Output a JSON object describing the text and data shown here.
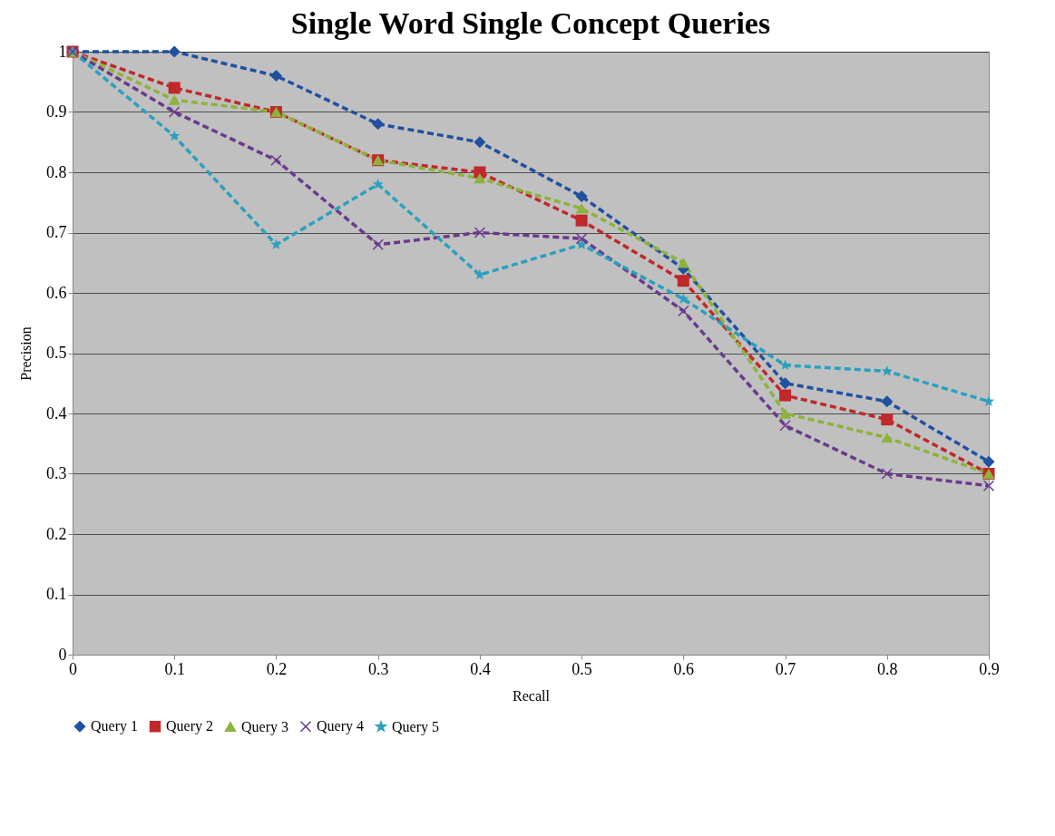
{
  "chart_data": {
    "type": "line",
    "title": "Single Word Single Concept Queries",
    "xlabel": "Recall",
    "ylabel": "Precision",
    "categories": [
      "0",
      "0.1",
      "0.2",
      "0.3",
      "0.4",
      "0.5",
      "0.6",
      "0.7",
      "0.8",
      "0.9"
    ],
    "series": [
      {
        "name": "Query 1",
        "color": "#2050a0",
        "marker": "diamond",
        "values": [
          1,
          1.0,
          0.96,
          0.88,
          0.85,
          0.76,
          0.64,
          0.45,
          0.42,
          0.32
        ]
      },
      {
        "name": "Query 2",
        "color": "#c0282a",
        "marker": "square",
        "values": [
          1,
          0.94,
          0.9,
          0.82,
          0.8,
          0.72,
          0.62,
          0.43,
          0.39,
          0.3
        ]
      },
      {
        "name": "Query 3",
        "color": "#8db33a",
        "marker": "triangle",
        "values": [
          1,
          0.92,
          0.9,
          0.82,
          0.79,
          0.74,
          0.65,
          0.4,
          0.36,
          0.3
        ]
      },
      {
        "name": "Query 4",
        "color": "#6a3a8c",
        "marker": "cross",
        "values": [
          1,
          0.9,
          0.82,
          0.68,
          0.7,
          0.69,
          0.57,
          0.38,
          0.3,
          0.28
        ]
      },
      {
        "name": "Query 5",
        "color": "#2aa0bf",
        "marker": "star",
        "values": [
          1,
          0.86,
          0.68,
          0.78,
          0.63,
          0.68,
          0.59,
          0.48,
          0.47,
          0.42
        ]
      }
    ],
    "ylim": [
      0,
      1
    ],
    "yticks": [
      0,
      0.1,
      0.2,
      0.3,
      0.4,
      0.5,
      0.6,
      0.7,
      0.8,
      0.9,
      1
    ],
    "grid": "y",
    "legend": "bottom",
    "line_style": "dashed"
  }
}
